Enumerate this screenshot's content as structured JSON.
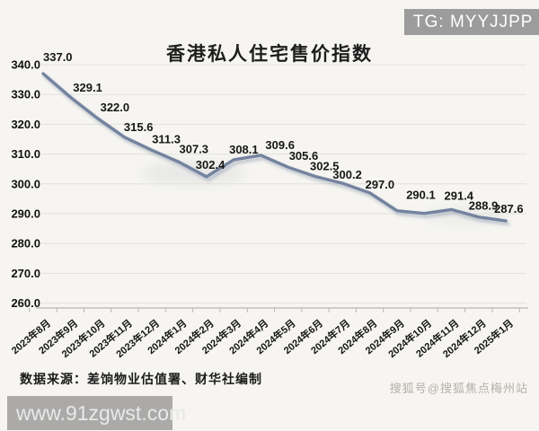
{
  "badges": {
    "tg": "TG: MYYJJPP"
  },
  "watermarks": {
    "sohu": "搜狐号@搜狐焦点梅州站",
    "url": "www.91zgwst.com"
  },
  "source_note": "数据来源：差饷物业估值署、财华社编制",
  "colors": {
    "background": "#f6f5f1",
    "line": "#74839f",
    "line_shadow": "#5a6e8c",
    "grid": "#e3e1db",
    "axis": "#b9b6b0",
    "label_text": "#161616",
    "badge_bg": "#909090",
    "url_bar_bg": "#8e8e8e"
  },
  "chart_data": {
    "type": "line",
    "title": "香港私人住宅售价指数",
    "categories": [
      "2023年8月",
      "2023年9月",
      "2023年10月",
      "2023年11月",
      "2023年12月",
      "2024年1月",
      "2024年2月",
      "2024年3月",
      "2024年4月",
      "2024年5月",
      "2024年6月",
      "2024年7月",
      "2024年8月",
      "2024年9月",
      "2024年10月",
      "2024年11月",
      "2024年12月",
      "2025年1月"
    ],
    "values": [
      337.0,
      329.1,
      322.0,
      315.6,
      311.3,
      307.3,
      302.4,
      308.1,
      309.6,
      305.6,
      302.5,
      300.2,
      297.0,
      291.0,
      290.1,
      291.4,
      288.9,
      287.6
    ],
    "point_labels": [
      "337.0",
      "329.1",
      "322.0",
      "315.6",
      "311.3",
      "307.3",
      "302.4",
      "308.1",
      "309.6",
      "305.6",
      "302.5",
      "300.2",
      "297.0",
      "",
      "290.1",
      "291.4",
      "288.9",
      "287.6"
    ],
    "yticks": [
      "340.0",
      "330.0",
      "320.0",
      "310.0",
      "300.0",
      "290.0",
      "280.0",
      "270.0",
      "260.0"
    ],
    "ylim": [
      260,
      340
    ],
    "ytick_step": 10,
    "grid": true,
    "legend": "none",
    "xlabel": "",
    "ylabel": ""
  }
}
